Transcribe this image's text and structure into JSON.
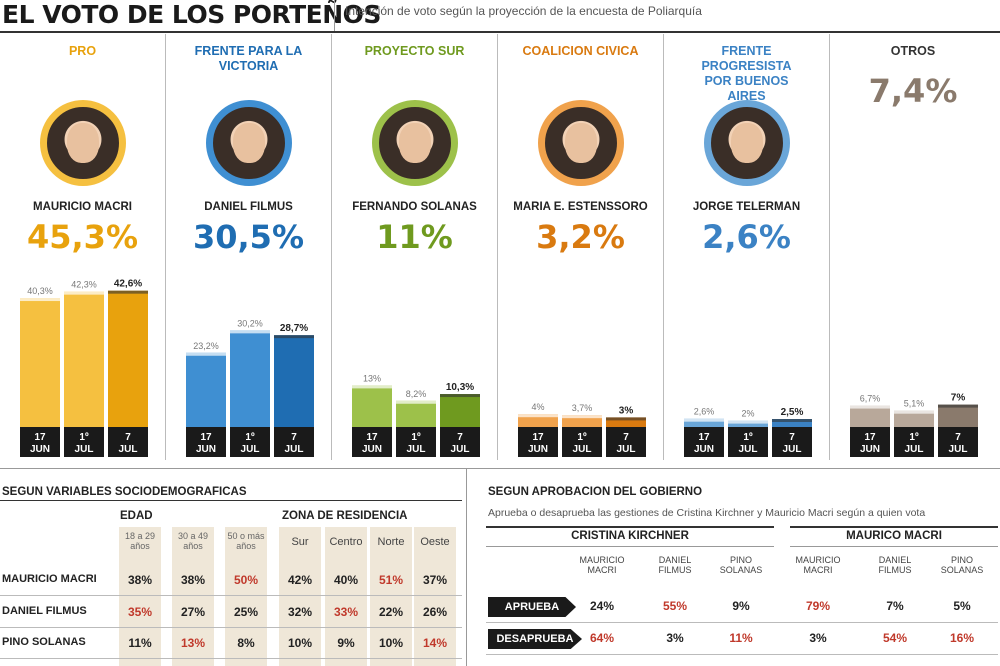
{
  "header": {
    "title": "EL VOTO DE LOS PORTEÑOS",
    "subtitle": "Intención de voto según la proyección de la encuesta de Poliarquía"
  },
  "candidates": [
    {
      "party": "PRO",
      "name": "MAURICIO MACRI",
      "total": "45,3%",
      "color": "#f5c040",
      "accent": "#e8a20d"
    },
    {
      "party": "FRENTE PARA LA VICTORIA",
      "name": "DANIEL FILMUS",
      "total": "30,5%",
      "color": "#3f8fd2",
      "accent": "#1f6db2"
    },
    {
      "party": "PROYECTO SUR",
      "name": "FERNANDO SOLANAS",
      "total": "11%",
      "color": "#9dc14a",
      "accent": "#6f9a1f"
    },
    {
      "party": "COALICION CIVICA",
      "name": "MARIA E. ESTENSSORO",
      "total": "3,2%",
      "color": "#f0a24c",
      "accent": "#d97a10"
    },
    {
      "party": "FRENTE PROGRESISTA POR BUENOS AIRES",
      "name": "JORGE TELERMAN",
      "total": "2,6%",
      "color": "#6aa6d8",
      "accent": "#3b82c4"
    },
    {
      "party": "OTROS",
      "name": "",
      "total": "7,4%",
      "color": "#b8a89a",
      "accent": "#8a7a6c"
    }
  ],
  "chart_data": {
    "type": "bar",
    "title": "EL VOTO DE LOS PORTEÑOS",
    "subtitle": "Intención de voto según la proyección de la encuesta de Poliarquía",
    "categories": [
      "17 JUN",
      "1º JUL",
      "7 JUL"
    ],
    "ylim": [
      0,
      50
    ],
    "series": [
      {
        "name": "MAURICIO MACRI",
        "values": [
          40.3,
          42.3,
          42.6
        ],
        "labels": [
          "40,3%",
          "42,3%",
          "42,6%"
        ]
      },
      {
        "name": "DANIEL FILMUS",
        "values": [
          23.2,
          30.2,
          28.7
        ],
        "labels": [
          "23,2%",
          "30,2%",
          "28,7%"
        ]
      },
      {
        "name": "FERNANDO SOLANAS",
        "values": [
          13,
          8.2,
          10.3
        ],
        "labels": [
          "13%",
          "8,2%",
          "10,3%"
        ]
      },
      {
        "name": "MARIA E. ESTENSSORO",
        "values": [
          4,
          3.7,
          3
        ],
        "labels": [
          "4%",
          "3,7%",
          "3%"
        ]
      },
      {
        "name": "JORGE TELERMAN",
        "values": [
          2.6,
          2,
          2.5
        ],
        "labels": [
          "2,6%",
          "2%",
          "2,5%"
        ]
      },
      {
        "name": "OTROS",
        "values": [
          6.7,
          5.1,
          7
        ],
        "labels": [
          "6,7%",
          "5,1%",
          "7%"
        ]
      }
    ]
  },
  "date_labels": [
    [
      "17",
      "JUN"
    ],
    [
      "1º",
      "JUL"
    ],
    [
      "7",
      "JUL"
    ]
  ],
  "socio": {
    "title": "SEGUN VARIABLES SOCIODEMOGRAFICAS",
    "edad_title": "EDAD",
    "edad_cols": [
      "18 a 29 años",
      "30 a 49 años",
      "50 o más años"
    ],
    "zona_title": "ZONA DE RESIDENCIA",
    "zona_cols": [
      "Sur",
      "Centro",
      "Norte",
      "Oeste"
    ],
    "rows": [
      {
        "label": "MAURICIO MACRI",
        "edad": [
          "38",
          "38",
          "50"
        ],
        "zona": [
          "42",
          "40",
          "51",
          "37"
        ],
        "edad_red": [
          false,
          false,
          true
        ],
        "zona_red": [
          false,
          false,
          true,
          false
        ]
      },
      {
        "label": "DANIEL FILMUS",
        "edad": [
          "35",
          "27",
          "25"
        ],
        "zona": [
          "32",
          "33",
          "22",
          "26"
        ],
        "edad_red": [
          true,
          false,
          false
        ],
        "zona_red": [
          false,
          true,
          false,
          false
        ]
      },
      {
        "label": "PINO SOLANAS",
        "edad": [
          "11",
          "13",
          "8"
        ],
        "zona": [
          "10",
          "9",
          "10",
          "14"
        ],
        "edad_red": [
          false,
          true,
          false
        ],
        "zona_red": [
          false,
          false,
          false,
          true
        ]
      }
    ],
    "pct": "%"
  },
  "aprob": {
    "title": "SEGUN APROBACION DEL GOBIERNO",
    "subtitle": "Aprueba o desaprueba las gestiones de Cristina Kirchner y Mauricio Macri según a quien vota",
    "ck_title": "CRISTINA KIRCHNER",
    "mm_title": "MAURICO MACRI",
    "cols": [
      "MAURICIO MACRI",
      "DANIEL FILMUS",
      "PINO SOLANAS"
    ],
    "mm_cols": [
      "MAURICIO MACRI",
      "DANIEL FILMUS",
      "PINO SOLANAS"
    ],
    "rows": [
      {
        "label": "APRUEBA",
        "ck": [
          "24",
          "55",
          "9"
        ],
        "mm": [
          "79",
          "7",
          "5"
        ],
        "ck_red": [
          false,
          true,
          false
        ],
        "mm_red": [
          true,
          false,
          false
        ]
      },
      {
        "label": "DESAPRUEBA",
        "ck": [
          "64",
          "3",
          "11"
        ],
        "mm": [
          "3",
          "54",
          "16"
        ],
        "ck_red": [
          true,
          false,
          true
        ],
        "mm_red": [
          false,
          true,
          true
        ]
      }
    ]
  }
}
